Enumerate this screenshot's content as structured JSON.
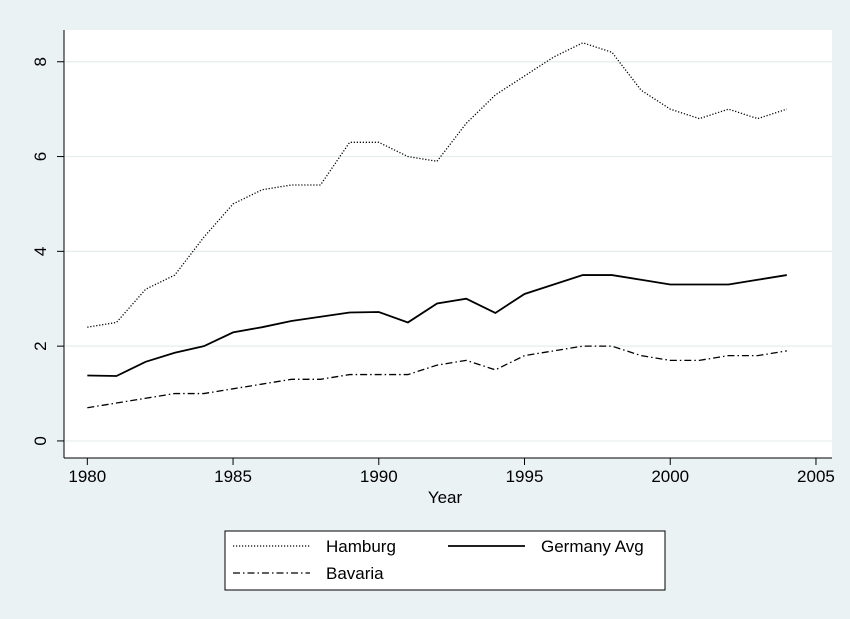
{
  "chart_data": {
    "type": "line",
    "x_label": "Year",
    "x": [
      1980,
      1981,
      1982,
      1983,
      1984,
      1985,
      1986,
      1987,
      1988,
      1989,
      1990,
      1991,
      1992,
      1993,
      1994,
      1995,
      1996,
      1997,
      1998,
      1999,
      2000,
      2001,
      2002,
      2003,
      2004
    ],
    "series": [
      {
        "name": "Hamburg",
        "color": "#000000",
        "line_style": "dotted",
        "values": [
          2.4,
          2.5,
          3.2,
          3.5,
          4.3,
          5.0,
          5.3,
          5.4,
          5.4,
          6.3,
          6.3,
          6.0,
          5.9,
          6.7,
          7.3,
          7.7,
          8.1,
          8.4,
          8.2,
          7.4,
          7.0,
          6.8,
          7.0,
          6.8,
          7.0
        ]
      },
      {
        "name": "Germany Avg",
        "color": "#000000",
        "line_style": "solid",
        "values": [
          1.38,
          1.37,
          1.67,
          1.86,
          2.0,
          2.29,
          2.4,
          2.53,
          2.62,
          2.71,
          2.72,
          2.5,
          2.9,
          3.0,
          2.7,
          3.1,
          3.3,
          3.5,
          3.5,
          3.4,
          3.3,
          3.3,
          3.3,
          3.4,
          3.5
        ]
      },
      {
        "name": "Bavaria",
        "color": "#000000",
        "line_style": "dashdot",
        "values": [
          0.7,
          0.8,
          0.9,
          1.0,
          1.0,
          1.1,
          1.2,
          1.3,
          1.3,
          1.4,
          1.4,
          1.4,
          1.6,
          1.7,
          1.5,
          1.8,
          1.9,
          2.0,
          2.0,
          1.8,
          1.7,
          1.7,
          1.8,
          1.8,
          1.9
        ]
      }
    ],
    "xlim": [
      1979.2,
      2005.55
    ],
    "xticks": [
      1980,
      1985,
      1990,
      1995,
      2000,
      2005
    ],
    "ylim": [
      -0.36,
      8.67
    ],
    "yticks": [
      0,
      2,
      4,
      6,
      8
    ],
    "grid": true,
    "legend": "bottom"
  }
}
